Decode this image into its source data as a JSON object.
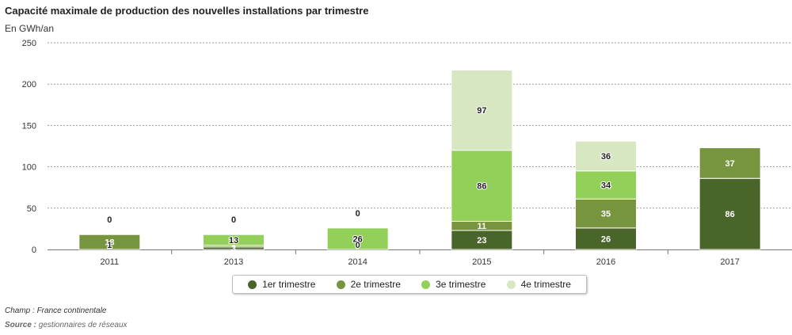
{
  "header": {
    "title": "Capacité maximale de production des nouvelles installations par trimestre",
    "unit": "En GWh/an"
  },
  "footer": {
    "champ": "Champ : France continentale",
    "source_label": "Source :",
    "source_text": "gestionnaires de réseaux"
  },
  "colors": {
    "q1": "#4a6529",
    "q2": "#77953f",
    "q3": "#93d05a",
    "q4": "#d6e7c2"
  },
  "chart_data": {
    "type": "bar",
    "stacked": true,
    "title": "Capacité maximale de production des nouvelles installations par trimestre",
    "ylabel": "En GWh/an",
    "ylim": [
      0,
      250
    ],
    "yticks": [
      0,
      50,
      100,
      150,
      200,
      250
    ],
    "grid": true,
    "legend_position": "bottom",
    "categories": [
      "2011",
      "2013",
      "2014",
      "2015",
      "2016",
      "2017"
    ],
    "series": [
      {
        "name": "1er trimestre",
        "key": "q1",
        "values": [
          null,
          3,
          null,
          23,
          26,
          86
        ],
        "labels": [
          "",
          "3",
          "",
          "23",
          "26",
          "86"
        ]
      },
      {
        "name": "2e trimestre",
        "key": "q2",
        "values": [
          18,
          2,
          null,
          11,
          35,
          37
        ],
        "labels": [
          "18",
          "",
          "",
          "11",
          "35",
          "37"
        ]
      },
      {
        "name": "3e trimestre",
        "key": "q3",
        "values": [
          null,
          13,
          26,
          86,
          34,
          null
        ],
        "labels": [
          "",
          "13",
          "26",
          "86",
          "34",
          ""
        ]
      },
      {
        "name": "4e trimestre",
        "key": "q4",
        "values": [
          0,
          0,
          0,
          97,
          36,
          null
        ],
        "labels": [
          "0",
          "0",
          "0",
          "97",
          "36",
          ""
        ]
      }
    ],
    "extra_labels": [
      {
        "category": "2011",
        "text": "1"
      },
      {
        "category": "2014",
        "text": "0"
      }
    ]
  }
}
